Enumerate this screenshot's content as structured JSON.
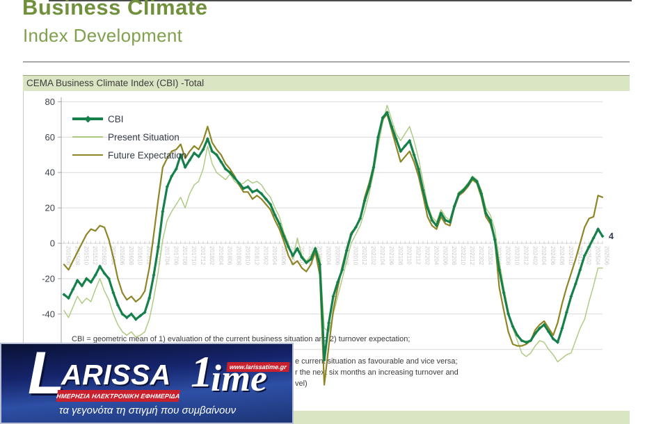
{
  "page": {
    "title_line1": "Business Climate",
    "title_line2": "Index Development"
  },
  "section": {
    "header": "CEMA Business Climate Index (CBI) -Total"
  },
  "footnotes": {
    "line1": "CBI = geometric mean of 1) evaluation of the current business situation and 2) turnover expectation;",
    "line2_fragment": "e current situation as favourable and vice versa;",
    "line3_fragment": "r the next six months an increasing turnover and",
    "line4_fragment": "vel)"
  },
  "watermark": {
    "letter": "L",
    "name_part1": "ARISSA",
    "name_part2_digit": "1",
    "name_part2_rest": "ime",
    "url": "www.larissatime.gr",
    "red_band": "ΗΜΕΡΗΣΙΑ ΗΛΕΚΤΡΟΝΙΚΗ ΕΦΗΜΕΡΙΔΑ",
    "tagline": "τα γεγονότα τη στιγμή που συμβαίνουν",
    "red_color": "#c9202e",
    "blue_color": "#1d3576"
  },
  "chart_data": {
    "type": "line",
    "title": "CEMA Business Climate Index (CBI) -Total",
    "x_start": "201506",
    "x_end": "202506",
    "x_interval_months": 1,
    "x_label_every": 2,
    "ylim": [
      -60,
      80
    ],
    "yticks": [
      80,
      60,
      40,
      20,
      0,
      -20,
      -40,
      -60
    ],
    "grid": true,
    "legend_position": "top-left",
    "last_value_label": "4",
    "x_labels": [
      "201506",
      "201508",
      "201510",
      "201512",
      "201602",
      "201604",
      "201606",
      "201608",
      "201610",
      "201612",
      "201702",
      "201704",
      "201706",
      "201708",
      "201710",
      "201712",
      "201802",
      "201804",
      "201806",
      "201808",
      "201810",
      "201812",
      "201902",
      "201904",
      "201906",
      "201908",
      "201910",
      "201912",
      "202002",
      "202004",
      "202006",
      "202008",
      "202010",
      "202012",
      "202102",
      "202104",
      "202106",
      "202108",
      "202110",
      "202112",
      "202202",
      "202204",
      "202206",
      "202208",
      "202210",
      "202212",
      "202302",
      "202304",
      "202306",
      "202308",
      "202310",
      "202312",
      "202402",
      "202404",
      "202406",
      "202408",
      "202410",
      "202412",
      "202502",
      "202504",
      "202506"
    ],
    "series": [
      {
        "name": "CBI",
        "color": "#15804a",
        "width": 3.2,
        "markers": true,
        "values": [
          -29,
          -31,
          -26,
          -21,
          -24,
          -20,
          -22,
          -18,
          -13,
          -17,
          -20,
          -28,
          -35,
          -40,
          -42,
          -40,
          -43,
          -41,
          -39,
          -31,
          -18,
          -2,
          18,
          32,
          38,
          42,
          50,
          43,
          47,
          51,
          49,
          53,
          59,
          52,
          50,
          46,
          42,
          40,
          37,
          34,
          31,
          32,
          29,
          30,
          28,
          25,
          22,
          16,
          11,
          4,
          -2,
          -7,
          -3,
          -8,
          -11,
          -9,
          -3,
          -12,
          -66,
          -45,
          -30,
          -22,
          -15,
          -4,
          5,
          9,
          14,
          24,
          32,
          43,
          60,
          71,
          74,
          66,
          59,
          52,
          55,
          58,
          50,
          42,
          30,
          20,
          13,
          10,
          17,
          13,
          12,
          21,
          28,
          30,
          33,
          37,
          35,
          28,
          17,
          13,
          2,
          -15,
          -28,
          -40,
          -47,
          -52,
          -55,
          -56,
          -55,
          -51,
          -48,
          -46,
          -50,
          -54,
          -56,
          -48,
          -39,
          -30,
          -23,
          -15,
          -7,
          -2,
          3,
          8,
          4
        ]
      },
      {
        "name": "Present Situation",
        "color": "#abc97c",
        "width": 1.4,
        "markers": false,
        "values": [
          -38,
          -42,
          -36,
          -30,
          -34,
          -31,
          -33,
          -26,
          -20,
          -27,
          -32,
          -40,
          -46,
          -50,
          -52,
          -50,
          -53,
          -52,
          -50,
          -43,
          -31,
          -16,
          2,
          13,
          18,
          22,
          26,
          20,
          28,
          33,
          35,
          42,
          55,
          45,
          40,
          38,
          36,
          39,
          35,
          33,
          34,
          36,
          34,
          35,
          33,
          29,
          26,
          20,
          15,
          6,
          0,
          -9,
          3,
          -7,
          -10,
          -7,
          -2,
          -8,
          -48,
          -50,
          -40,
          -30,
          -20,
          -10,
          0,
          5,
          10,
          18,
          28,
          40,
          55,
          68,
          78,
          70,
          62,
          58,
          62,
          66,
          58,
          48,
          35,
          22,
          15,
          12,
          19,
          15,
          13,
          22,
          29,
          31,
          34,
          38,
          36,
          30,
          20,
          16,
          8,
          -10,
          -25,
          -38,
          -48,
          -55,
          -62,
          -64,
          -62,
          -58,
          -55,
          -56,
          -60,
          -63,
          -67,
          -65,
          -63,
          -62,
          -55,
          -48,
          -43,
          -33,
          -24,
          -14,
          -14
        ]
      },
      {
        "name": "Future Expectation",
        "color": "#8e8526",
        "width": 2.2,
        "markers": false,
        "values": [
          -12,
          -15,
          -10,
          -5,
          0,
          5,
          8,
          7,
          10,
          9,
          2,
          -8,
          -20,
          -28,
          -32,
          -30,
          -33,
          -31,
          -27,
          -14,
          5,
          25,
          43,
          48,
          52,
          53,
          56,
          48,
          52,
          55,
          53,
          58,
          66,
          57,
          53,
          50,
          45,
          42,
          38,
          33,
          29,
          29,
          25,
          27,
          25,
          22,
          19,
          13,
          8,
          1,
          -7,
          -12,
          -10,
          -14,
          -16,
          -12,
          -5,
          -18,
          -80,
          -58,
          -38,
          -25,
          -13,
          -3,
          6,
          9,
          14,
          26,
          34,
          44,
          60,
          70,
          73,
          64,
          55,
          46,
          49,
          52,
          46,
          38,
          27,
          15,
          10,
          8,
          15,
          11,
          10,
          20,
          27,
          29,
          32,
          36,
          34,
          26,
          15,
          11,
          2,
          -25,
          -38,
          -50,
          -57,
          -58,
          -58,
          -57,
          -55,
          -49,
          -46,
          -44,
          -48,
          -52,
          -45,
          -34,
          -25,
          -17,
          -9,
          0,
          9,
          14,
          15,
          27,
          26
        ]
      }
    ]
  }
}
